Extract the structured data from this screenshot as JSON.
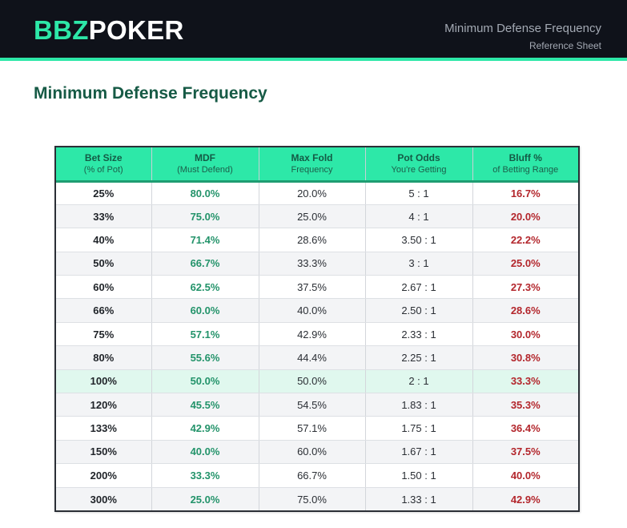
{
  "header": {
    "logo_accent": "BBZ",
    "logo_main": "POKER",
    "title": "Minimum Defense Frequency",
    "subtitle": "Reference Sheet"
  },
  "page_title": "Minimum Defense Frequency",
  "colors": {
    "brand_accent": "#2de8a8",
    "header_bg": "#0f121a",
    "title_green": "#165a45",
    "mdf_green": "#23936a",
    "bluff_red": "#b3262c",
    "highlight_row": "#e0f8ee"
  },
  "table": {
    "columns": [
      {
        "label": "Bet Size",
        "sub": "(% of Pot)"
      },
      {
        "label": "MDF",
        "sub": "(Must Defend)"
      },
      {
        "label": "Max Fold",
        "sub": "Frequency"
      },
      {
        "label": "Pot Odds",
        "sub": "You're Getting"
      },
      {
        "label": "Bluff %",
        "sub": "of Betting Range"
      }
    ],
    "rows": [
      {
        "bet": "25%",
        "mdf": "80.0%",
        "fold": "20.0%",
        "odds": "5 : 1",
        "bluff": "16.7%",
        "highlight": false
      },
      {
        "bet": "33%",
        "mdf": "75.0%",
        "fold": "25.0%",
        "odds": "4 : 1",
        "bluff": "20.0%",
        "highlight": false
      },
      {
        "bet": "40%",
        "mdf": "71.4%",
        "fold": "28.6%",
        "odds": "3.50 : 1",
        "bluff": "22.2%",
        "highlight": false
      },
      {
        "bet": "50%",
        "mdf": "66.7%",
        "fold": "33.3%",
        "odds": "3 : 1",
        "bluff": "25.0%",
        "highlight": false
      },
      {
        "bet": "60%",
        "mdf": "62.5%",
        "fold": "37.5%",
        "odds": "2.67 : 1",
        "bluff": "27.3%",
        "highlight": false
      },
      {
        "bet": "66%",
        "mdf": "60.0%",
        "fold": "40.0%",
        "odds": "2.50 : 1",
        "bluff": "28.6%",
        "highlight": false
      },
      {
        "bet": "75%",
        "mdf": "57.1%",
        "fold": "42.9%",
        "odds": "2.33 : 1",
        "bluff": "30.0%",
        "highlight": false
      },
      {
        "bet": "80%",
        "mdf": "55.6%",
        "fold": "44.4%",
        "odds": "2.25 : 1",
        "bluff": "30.8%",
        "highlight": false
      },
      {
        "bet": "100%",
        "mdf": "50.0%",
        "fold": "50.0%",
        "odds": "2 : 1",
        "bluff": "33.3%",
        "highlight": true
      },
      {
        "bet": "120%",
        "mdf": "45.5%",
        "fold": "54.5%",
        "odds": "1.83 : 1",
        "bluff": "35.3%",
        "highlight": false
      },
      {
        "bet": "133%",
        "mdf": "42.9%",
        "fold": "57.1%",
        "odds": "1.75 : 1",
        "bluff": "36.4%",
        "highlight": false
      },
      {
        "bet": "150%",
        "mdf": "40.0%",
        "fold": "60.0%",
        "odds": "1.67 : 1",
        "bluff": "37.5%",
        "highlight": false
      },
      {
        "bet": "200%",
        "mdf": "33.3%",
        "fold": "66.7%",
        "odds": "1.50 : 1",
        "bluff": "40.0%",
        "highlight": false
      },
      {
        "bet": "300%",
        "mdf": "25.0%",
        "fold": "75.0%",
        "odds": "1.33 : 1",
        "bluff": "42.9%",
        "highlight": false
      }
    ]
  }
}
